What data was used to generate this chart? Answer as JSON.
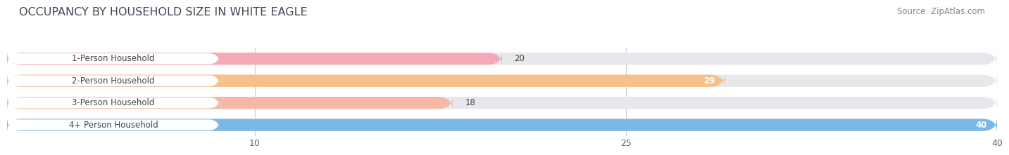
{
  "title": "OCCUPANCY BY HOUSEHOLD SIZE IN WHITE EAGLE",
  "source": "Source: ZipAtlas.com",
  "categories": [
    "1-Person Household",
    "2-Person Household",
    "3-Person Household",
    "4+ Person Household"
  ],
  "values": [
    20,
    29,
    18,
    40
  ],
  "bar_colors": [
    "#f5a8b8",
    "#f5c08a",
    "#f5b8a8",
    "#7ab8e8"
  ],
  "background_color": "#ffffff",
  "bar_bg_color": "#e8e8ec",
  "xlim": [
    0,
    40
  ],
  "xticks": [
    10,
    25,
    40
  ],
  "title_fontsize": 11.5,
  "source_fontsize": 8.5,
  "label_fontsize": 8.5,
  "value_fontsize": 8.5
}
